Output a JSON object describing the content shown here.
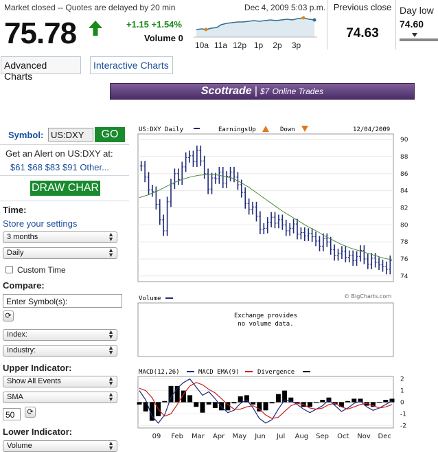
{
  "quote": {
    "market_status": "Market closed -- Quotes are delayed by 20 min",
    "datetime": "Dec 4, 2009 5:03 p.m.",
    "price": "75.78",
    "change": "+1.15 +1.54%",
    "volume": "Volume 0",
    "previous_close_label": "Previous close",
    "previous_close": "74.63",
    "day_low_label": "Day low",
    "day_low": "74.60",
    "spark_times": [
      "10a",
      "11a",
      "12p",
      "1p",
      "2p",
      "3p"
    ],
    "colors": {
      "up": "#1a8a1a",
      "spark": "#2e6e8e"
    }
  },
  "tabs": {
    "advanced": "Advanced Charts",
    "interactive": "Interactive Charts"
  },
  "banner": {
    "brand": "Scottrade",
    "offer_amount": "$7",
    "offer_text": "Online Trades"
  },
  "sidebar": {
    "symbol_label": "Symbol:",
    "symbol_value": "US:DXY",
    "go": "GO",
    "alert_text": "Get an Alert on US:DXY at:",
    "alert_levels": [
      "$61",
      "$68",
      "$83",
      "$91",
      "Other..."
    ],
    "draw_button": "DRAW CHAR",
    "time_label": "Time:",
    "store_settings": "Store your settings",
    "period": "3 months",
    "frequency": "Daily",
    "custom_time": "Custom Time",
    "compare_label": "Compare:",
    "compare_placeholder": "Enter Symbol(s):",
    "index": "Index:",
    "industry": "Industry:",
    "upper_label": "Upper Indicator:",
    "upper_events": "Show All Events",
    "upper_indicator": "SMA",
    "upper_param": "50",
    "lower_label": "Lower Indicator:",
    "lower_indicator": "Volume"
  },
  "chart_data": [
    {
      "type": "ohlc",
      "title": "US:DXY Daily",
      "legend": [
        "US:DXY Daily",
        "Earnings",
        "Up",
        "Down"
      ],
      "date": "12/04/2009",
      "credit": "© BigCharts.com",
      "yticks": [
        74,
        76,
        78,
        80,
        82,
        84,
        86,
        88,
        90
      ],
      "ylim": [
        73.5,
        90.5
      ],
      "xlabels": [
        "09",
        "Feb",
        "Mar",
        "Apr",
        "May",
        "Jun",
        "Jul",
        "Aug",
        "Sep",
        "Oct",
        "Nov",
        "Dec"
      ],
      "series": [
        {
          "name": "US:DXY Daily",
          "color": "#1f2a7a",
          "close": [
            86.9,
            85.6,
            84.1,
            83.9,
            82.4,
            80.6,
            79.3,
            82.7,
            84.8,
            86.0,
            85.3,
            86.8,
            87.9,
            88.1,
            87.4,
            88.7,
            87.5,
            86.0,
            84.2,
            85.5,
            85.4,
            86.2,
            84.9,
            85.7,
            86.2,
            85.6,
            84.7,
            83.8,
            82.5,
            81.8,
            82.1,
            81.0,
            79.5,
            79.6,
            80.3,
            80.9,
            80.2,
            80.6,
            80.0,
            79.3,
            79.6,
            80.1,
            78.9,
            79.1,
            78.7,
            79.0,
            78.6,
            78.1,
            77.5,
            78.4,
            78.0,
            77.1,
            76.4,
            76.6,
            76.9,
            76.2,
            76.4,
            75.8,
            76.3,
            77.0,
            76.0,
            75.4,
            76.1,
            75.6,
            75.3,
            75.1,
            74.8,
            75.8
          ]
        },
        {
          "name": "SMA 50",
          "color": "#4a8a3a",
          "values": [
            83.2,
            83.5,
            83.9,
            84.4,
            84.9,
            85.3,
            85.6,
            85.8,
            85.9,
            85.9,
            85.7,
            85.5,
            85.0,
            84.4,
            83.7,
            83.0,
            82.3,
            81.6,
            81.0,
            80.4,
            79.8,
            79.3,
            78.7,
            78.2,
            77.7,
            77.3,
            77.0,
            76.7,
            76.4,
            76.1,
            75.9
          ]
        }
      ]
    },
    {
      "type": "bar",
      "title": "Volume",
      "message_line1": "Exchange provides",
      "message_line2": "no volume data."
    },
    {
      "type": "line",
      "title": "MACD(12,26)",
      "legend": [
        "MACD(12,26)",
        "MACD EMA(9)",
        "Divergence"
      ],
      "yticks": [
        -2,
        -1,
        0,
        1,
        2
      ],
      "ylim": [
        -2.1,
        2.1
      ],
      "series": [
        {
          "name": "MACD(12,26)",
          "color": "#1f2a7a",
          "values": [
            1.0,
            0.2,
            -1.2,
            -1.8,
            -1.1,
            0.4,
            1.2,
            1.7,
            2.0,
            1.3,
            0.6,
            0.9,
            0.3,
            -0.4,
            -0.9,
            -0.7,
            -0.1,
            0.2,
            -0.5,
            -1.4,
            -1.8,
            -1.5,
            -0.6,
            0.2,
            0.1,
            -0.2,
            -0.6,
            -0.9,
            -0.6,
            -0.3,
            0.2,
            -0.3,
            -0.8,
            -0.5,
            -0.1,
            0.1,
            -0.4,
            -0.7,
            -0.5,
            -0.2,
            0.1
          ]
        },
        {
          "name": "MACD EMA(9)",
          "color": "#c82020",
          "values": [
            1.2,
            1.0,
            0.4,
            -0.6,
            -1.2,
            -1.0,
            -0.2,
            0.7,
            1.4,
            1.7,
            1.5,
            1.1,
            0.8,
            0.3,
            -0.2,
            -0.6,
            -0.6,
            -0.4,
            -0.3,
            -0.6,
            -1.1,
            -1.4,
            -1.3,
            -0.8,
            -0.3,
            -0.1,
            -0.2,
            -0.5,
            -0.6,
            -0.5,
            -0.2,
            -0.1,
            -0.4,
            -0.6,
            -0.4,
            -0.2,
            -0.1,
            -0.3,
            -0.5,
            -0.4,
            -0.2
          ]
        },
        {
          "name": "Divergence",
          "color": "#000000"
        }
      ]
    }
  ]
}
